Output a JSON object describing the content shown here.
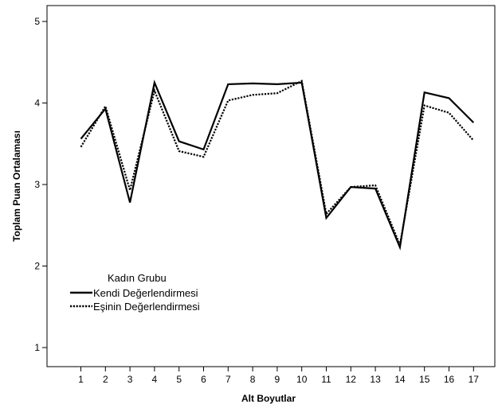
{
  "chart_data": {
    "type": "line",
    "xlabel": "Alt Boyutlar",
    "ylabel": "Toplam Puan Ortalaması",
    "categories": [
      "1",
      "2",
      "3",
      "4",
      "5",
      "6",
      "7",
      "8",
      "9",
      "10",
      "11",
      "12",
      "13",
      "14",
      "15",
      "16",
      "17"
    ],
    "yticks": [
      1,
      2,
      3,
      4,
      5
    ],
    "ylim": [
      0.8,
      5.2
    ],
    "grid": false,
    "legend": {
      "title": "Kadın Grubu",
      "placement": "left-lower"
    },
    "series": [
      {
        "name": "Kendi Değerlendirmesi",
        "style": "solid",
        "color": "#000000",
        "values": [
          3.56,
          3.93,
          2.78,
          4.25,
          3.53,
          3.43,
          4.23,
          4.24,
          4.23,
          4.25,
          2.59,
          2.97,
          2.95,
          2.23,
          4.13,
          4.06,
          3.76
        ]
      },
      {
        "name": "Eşinin Değerlendirmesi",
        "style": "dotted",
        "color": "#000000",
        "values": [
          3.46,
          3.96,
          2.93,
          4.15,
          3.41,
          3.34,
          4.03,
          4.1,
          4.12,
          4.27,
          2.64,
          2.97,
          2.99,
          2.26,
          3.97,
          3.88,
          3.54
        ]
      }
    ]
  }
}
